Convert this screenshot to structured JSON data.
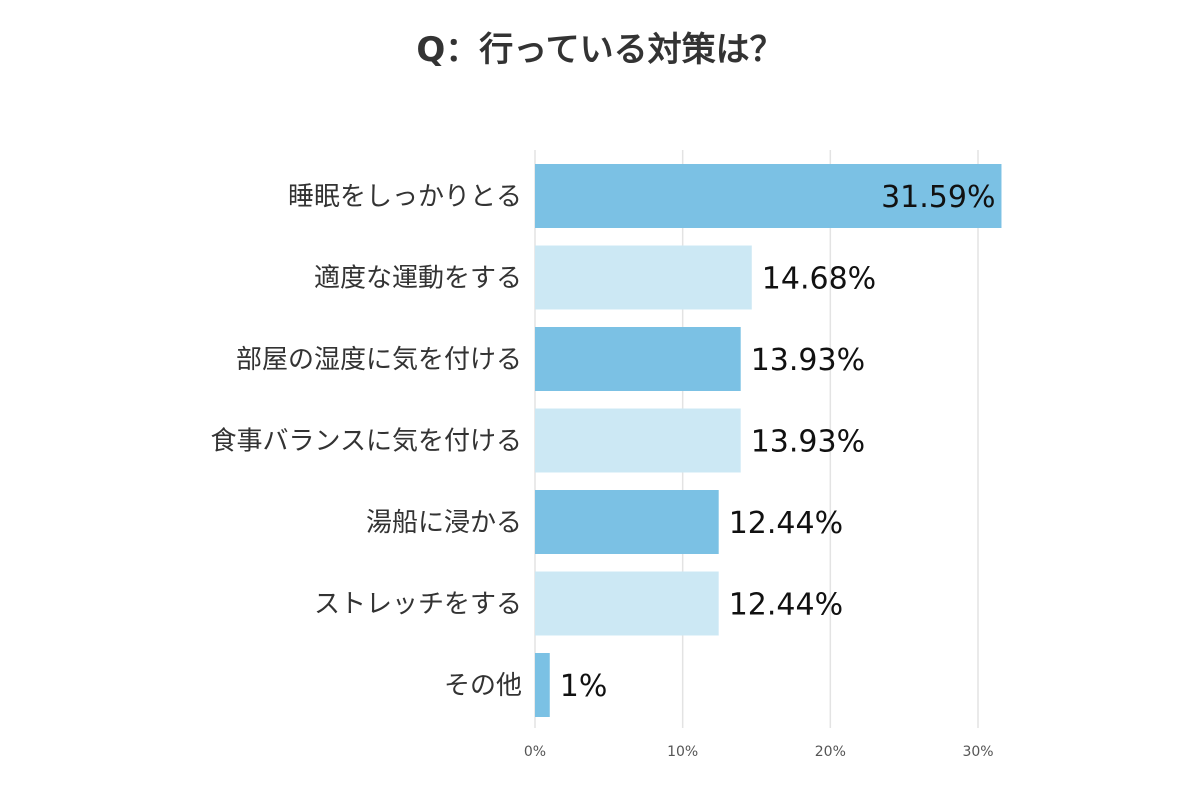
{
  "chart_data": {
    "type": "bar",
    "orientation": "horizontal",
    "title": "Q：行っている対策は？",
    "categories": [
      "睡眠をしっかりとる",
      "適度な運動をする",
      "部屋の湿度に気を付ける",
      "食事バランスに気を付ける",
      "湯船に浸かる",
      "ストレッチをする",
      "その他"
    ],
    "values": [
      31.59,
      14.68,
      13.93,
      13.93,
      12.44,
      12.44,
      1
    ],
    "value_labels": [
      "31.59%",
      "14.68%",
      "13.93%",
      "13.93%",
      "12.44%",
      "12.44%",
      "1%"
    ],
    "xlim": [
      0,
      30
    ],
    "xticks": [
      0,
      10,
      20,
      30
    ],
    "xtick_labels": [
      "0%",
      "10%",
      "20%",
      "30%"
    ],
    "grid": true,
    "colors": [
      "#7bc1e4",
      "#cce8f4"
    ]
  }
}
